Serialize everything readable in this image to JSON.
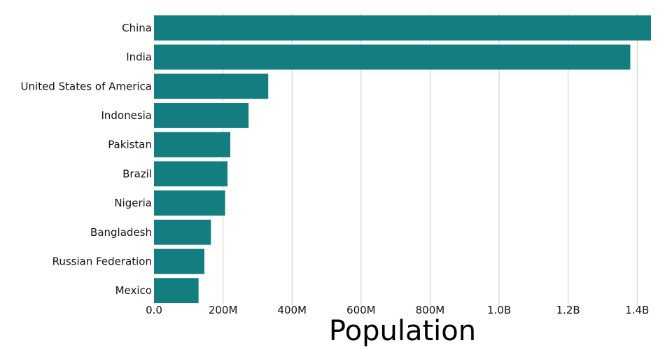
{
  "chart_data": {
    "type": "bar",
    "orientation": "horizontal",
    "categories": [
      "China",
      "India",
      "United States of America",
      "Indonesia",
      "Pakistan",
      "Brazil",
      "Nigeria",
      "Bangladesh",
      "Russian Federation",
      "Mexico"
    ],
    "values": [
      1440000000,
      1380000000,
      331000000,
      274000000,
      221000000,
      213000000,
      206000000,
      165000000,
      146000000,
      129000000
    ],
    "xlabel": "Population",
    "ylabel": "",
    "xlim": [
      0,
      1440000000
    ],
    "x_ticks": [
      0,
      200000000,
      400000000,
      600000000,
      800000000,
      1000000000,
      1200000000,
      1400000000
    ],
    "x_tick_labels": [
      "0.0",
      "200M",
      "400M",
      "600M",
      "800M",
      "1.0B",
      "1.2B",
      "1.4B"
    ],
    "grid": "vertical",
    "bar_color": "#137d7f"
  }
}
